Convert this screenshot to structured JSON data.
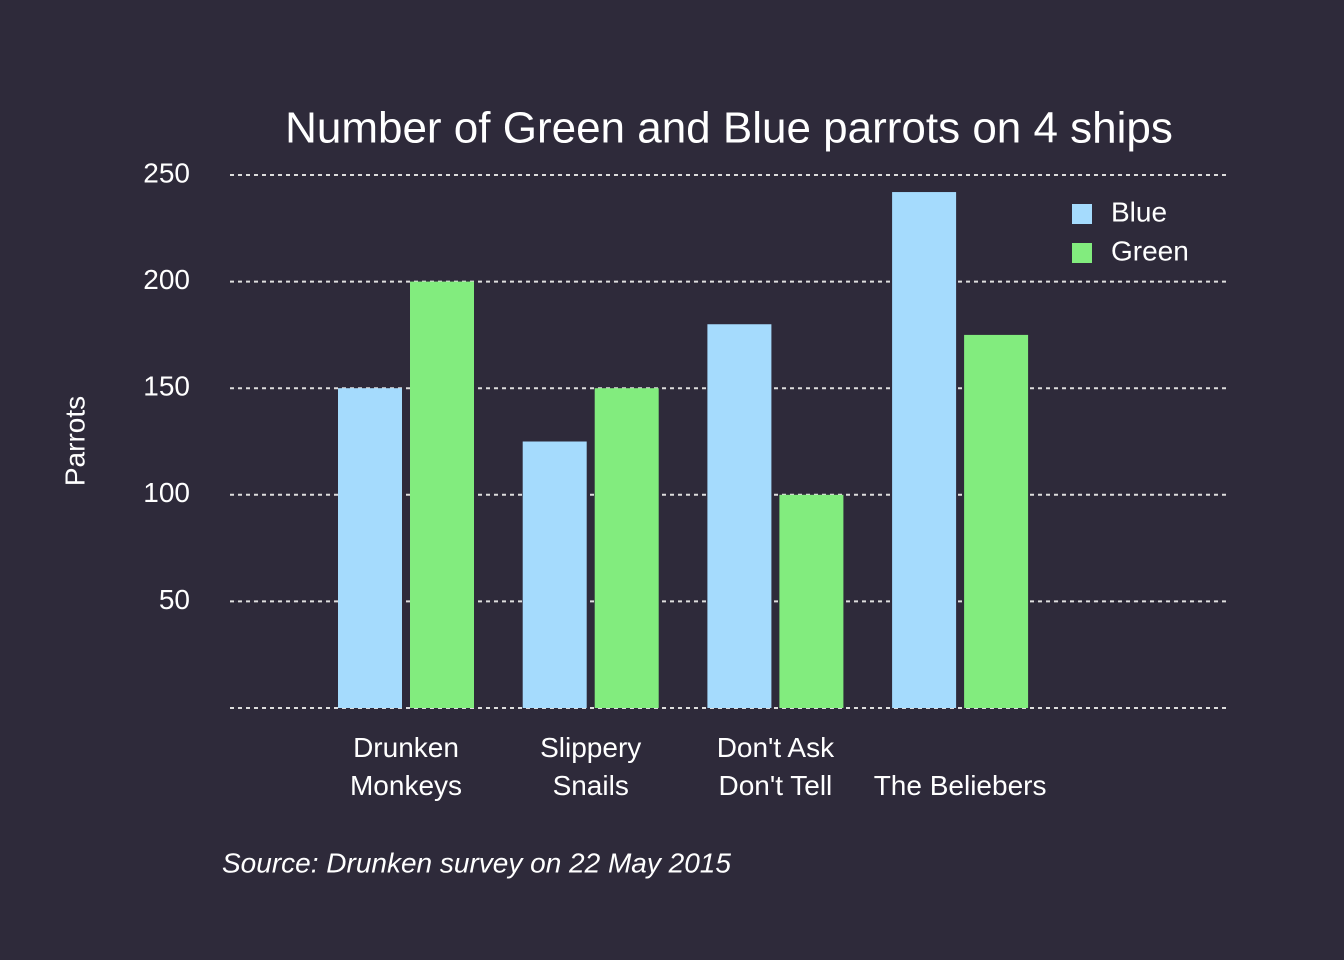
{
  "chart_data": {
    "type": "bar",
    "title": "Number of Green and Blue parrots on 4 ships",
    "y_label": "Parrots",
    "source": "Source: Drunken survey on 22 May 2015",
    "categories": [
      [
        "Drunken",
        "Monkeys"
      ],
      [
        "Slippery",
        "Snails"
      ],
      [
        "Don't Ask",
        "Don't Tell"
      ],
      [
        "The Beliebers"
      ]
    ],
    "series": [
      {
        "name": "Blue",
        "color": "#a5dbfd",
        "values": [
          150,
          125,
          180,
          242
        ]
      },
      {
        "name": "Green",
        "color": "#82ec7e",
        "values": [
          200,
          150,
          100,
          175
        ]
      }
    ],
    "ylim": [
      0,
      250
    ],
    "yticks": [
      50,
      100,
      150,
      200,
      250
    ],
    "grid": true,
    "legend": "upper right"
  }
}
